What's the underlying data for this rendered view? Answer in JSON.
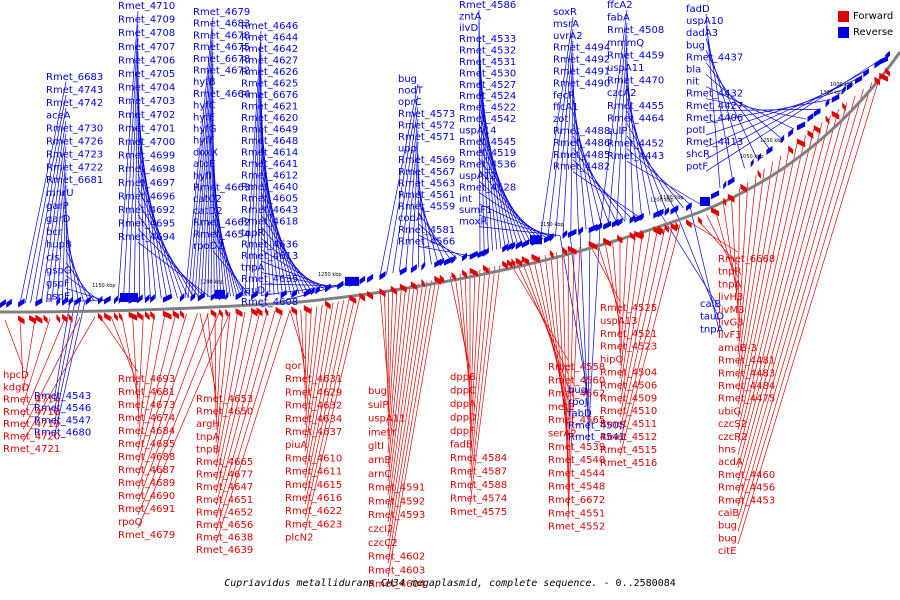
{
  "colors": {
    "forward": "#e00000",
    "reverse": "#0000e0",
    "backbone": "#808080"
  },
  "legend": {
    "forward": "Forward",
    "reverse": "Reverse"
  },
  "caption": {
    "organism": "Cupriavidus metallidurans CH34 megaplasmid, complete sequence.",
    "range": " - 0..2580084"
  },
  "ticks": [
    "1150 kbp",
    "1200 kbp",
    "1250 kbp",
    "1150 kbp",
    "1200 kbp",
    "1250 kbp",
    "1300 kbp",
    "1000 kbp",
    "1050 kbp",
    "1100 kbp"
  ],
  "reverse_labels": [
    "Rmet_4710",
    "Rmet_4709",
    "Rmet_4708",
    "Rmet_4707",
    "Rmet_4706",
    "Rmet_4705",
    "Rmet_4704",
    "Rmet_4703",
    "Rmet_4702",
    "Rmet_4701",
    "Rmet_4700",
    "Rmet_4699",
    "Rmet_4698",
    "Rmet_4697",
    "Rmet_4696",
    "Rmet_4692",
    "Rmet_4695",
    "Rmet_4694",
    "Rmet_6683",
    "Rmet_4743",
    "Rmet_4742",
    "aceA",
    "Rmet_4730",
    "Rmet_4726",
    "Rmet_4723",
    "Rmet_4722",
    "Rmet_6681",
    "mnrU",
    "garP",
    "garD",
    "bcr",
    "hupB",
    "cls",
    "gspG",
    "gspF",
    "gspE",
    "Rmet_4679",
    "Rmet_4683",
    "Rmet_4678",
    "Rmet_4675",
    "Rmet_6678",
    "Rmet_4672",
    "hyfB",
    "Rmet_4664",
    "hyfC",
    "hyfE",
    "hyfG",
    "hyfF",
    "doxX",
    "atoE",
    "hyfI",
    "Rmet_4663",
    "catC2",
    "catD2",
    "Rmet_4662",
    "Rmet_4654",
    "rpoD2",
    "Rmet_4646",
    "Rmet_4644",
    "Rmet_4642",
    "Rmet_4627",
    "Rmet_4626",
    "Rmet_4625",
    "Rmet_6676",
    "Rmet_4621",
    "Rmet_4620",
    "Rmet_4649",
    "Rmet_4648",
    "Rmet_4614",
    "Rmet_4641",
    "Rmet_4612",
    "Rmet_4640",
    "Rmet_4605",
    "Rmet_4643",
    "Rmet_4618",
    "tnpR",
    "Rmet_4636",
    "Rmet_4613",
    "tnpA",
    "Rmet_4635",
    "tauD",
    "Rmet_4608",
    "bug",
    "nodT",
    "oprC",
    "Rmet_4573",
    "Rmet_4572",
    "Rmet_4571",
    "upp",
    "Rmet_4569",
    "Rmet_4567",
    "Rmet_4563",
    "Rmet_4561",
    "Rmet_4559",
    "codA",
    "Rmet_4581",
    "Rmet_4566",
    "Rmet_4586",
    "zntA",
    "ilvD",
    "Rmet_4533",
    "Rmet_4532",
    "Rmet_4531",
    "Rmet_4530",
    "Rmet_4527",
    "Rmet_4524",
    "Rmet_4522",
    "Rmet_4542",
    "uspA14",
    "Rmet_4545",
    "Rmet_4519",
    "Rmet_4536",
    "uspA12",
    "Rmet_4528",
    "int",
    "sumF1",
    "moxR",
    "soxR",
    "msrA",
    "uvrA2",
    "Rmet_4494",
    "Rmet_4492",
    "Rmet_4491",
    "Rmet_4490",
    "fecR",
    "ffcA1",
    "zot",
    "Rmet_4488",
    "Rmet_4486",
    "Rmet_4485",
    "Rmet_4482",
    "ffcA2",
    "fabA",
    "Rmet_4508",
    "mmmQ",
    "Rmet_4459",
    "uspA11",
    "Rmet_4470",
    "czcA2",
    "Rmet_4455",
    "Rmet_4464",
    "sulP",
    "Rmet_4452",
    "Rmet_4443",
    "fadD",
    "uspA10",
    "dadA3",
    "bug",
    "Rmet_4437",
    "bla",
    "nit",
    "Rmet_4432",
    "Rmet_4427",
    "Rmet_4406",
    "potI",
    "Rmet_4413",
    "shcR",
    "potF",
    "caiB",
    "tauD",
    "tnpA",
    "bug",
    "rpoJ",
    "fabD",
    "Rmet_4505",
    "Rmet_4541",
    "Rmet_4543",
    "Rmet_4546",
    "Rmet_4547",
    "Rmet_4680",
    "Rmet_4716",
    "Rmet_4717",
    "Rmet_4715"
  ],
  "forward_labels": [
    "hpcD",
    "kdgD",
    "Rmet_4714",
    "Rmet_4718",
    "Rmet_4719",
    "Rmet_4720",
    "Rmet_4721",
    "Rmet_4693",
    "Rmet_4681",
    "Rmet_4673",
    "Rmet_4674",
    "Rmet_4684",
    "Rmet_4685",
    "Rmet_4688",
    "Rmet_4687",
    "Rmet_4689",
    "Rmet_4690",
    "Rmet_4691",
    "rpoQ",
    "Rmet_4679",
    "Rmet_4653",
    "Rmet_4650",
    "argH",
    "tnpA",
    "tnpB",
    "Rmet_4665",
    "Rmet_4677",
    "Rmet_4647",
    "Rmet_4651",
    "Rmet_4652",
    "Rmet_4656",
    "Rmet_4638",
    "Rmet_4639",
    "qor",
    "Rmet_4631",
    "Rmet_4629",
    "Rmet_4632",
    "Rmet_4634",
    "Rmet_4637",
    "piuA",
    "Rmet_4610",
    "Rmet_4611",
    "Rmet_4615",
    "Rmet_4616",
    "Rmet_4622",
    "Rmet_4623",
    "plcN2",
    "bug",
    "sulP",
    "uspA11",
    "imetY",
    "gltI",
    "arnB",
    "arnC",
    "Rmet_4591",
    "Rmet_4592",
    "Rmet_4593",
    "czcI2",
    "czcC2",
    "Rmet_4602",
    "Rmet_4603",
    "Rmet_4604",
    "dppB",
    "dppC",
    "dppA",
    "dppD",
    "dppF",
    "fadB",
    "Rmet_4584",
    "Rmet_4587",
    "Rmet_4588",
    "Rmet_4574",
    "Rmet_4575",
    "Rmet_4558",
    "Rmet_4560",
    "Rmet_4562",
    "metE",
    "Rmet_4565",
    "serA2",
    "Rmet_4539",
    "Rmet_4540",
    "Rmet_4544",
    "Rmet_4548",
    "Rmet_6672",
    "Rmet_4551",
    "Rmet_4552",
    "Rmet_4525",
    "uspA13",
    "Rmet_4521",
    "Rmet_4523",
    "hipO",
    "Rmet_4504",
    "Rmet_4506",
    "Rmet_4509",
    "Rmet_4510",
    "Rmet_4511",
    "Rmet_4512",
    "Rmet_4515",
    "Rmet_4516",
    "Rmet_6668",
    "tnpR",
    "tnpA",
    "livH3",
    "livM3",
    "livG3",
    "livF3",
    "amaB-3",
    "Rmet_4481",
    "Rmet_4483",
    "Rmet_4484",
    "Rmet_4475",
    "ubiG",
    "czcS2",
    "czcR2",
    "hns",
    "acdA",
    "Rmet_4460",
    "Rmet_4456",
    "Rmet_4453",
    "caiB",
    "bug",
    "bug",
    "citE"
  ]
}
